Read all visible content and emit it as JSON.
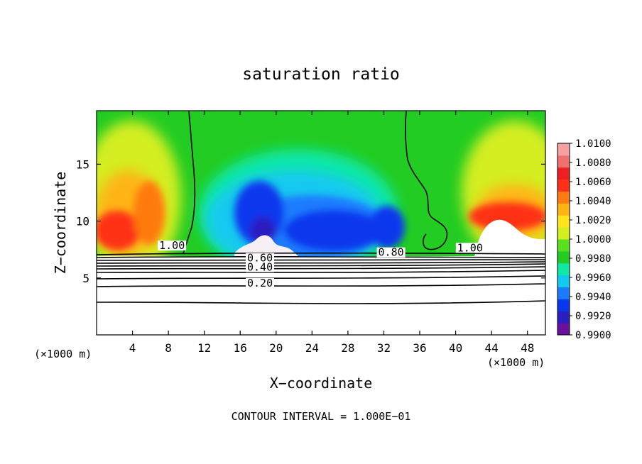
{
  "chart_data": {
    "type": "heatmap",
    "title": "saturation ratio",
    "xlabel": "X−coordinate",
    "ylabel": "Z−coordinate",
    "x_unit_left": "(×1000 m)",
    "x_unit_right": "(×1000 m)",
    "xlim": [
      0,
      50
    ],
    "ylim": [
      0,
      19.7
    ],
    "x_ticks": [
      4,
      8,
      12,
      16,
      20,
      24,
      28,
      32,
      36,
      40,
      44,
      48
    ],
    "y_ticks": [
      5,
      10,
      15
    ],
    "footer": "CONTOUR INTERVAL = 1.000E−01",
    "colorbar": {
      "range": [
        0.99,
        1.01
      ],
      "labels": [
        "0.9900",
        "0.9920",
        "0.9940",
        "0.9960",
        "0.9980",
        "1.0000",
        "1.0020",
        "1.0040",
        "1.0060",
        "1.0080",
        "1.0100"
      ],
      "colors": [
        "#6a0fa0",
        "#2b1fc0",
        "#0838ee",
        "#1a7bff",
        "#12c9f0",
        "#10e8a8",
        "#22cc22",
        "#58e020",
        "#d4ee22",
        "#ffe41e",
        "#ffb414",
        "#ff7a10",
        "#ff3018",
        "#ec2020",
        "#f07070",
        "#f6a0a0"
      ]
    },
    "contour_labels": [
      {
        "text": "1.00",
        "x": 8.4,
        "z": 7.6
      },
      {
        "text": "0.60",
        "x": 18.2,
        "z": 6.5
      },
      {
        "text": "0.40",
        "x": 18.2,
        "z": 5.7
      },
      {
        "text": "0.20",
        "x": 18.2,
        "z": 4.3
      },
      {
        "text": "0.80",
        "x": 32.8,
        "z": 7.0
      },
      {
        "text": "1.00",
        "x": 41.6,
        "z": 7.4
      }
    ],
    "contour_levels_below_cloud": [
      0.1,
      0.2,
      0.3,
      0.4,
      0.5,
      0.6,
      0.7,
      0.8,
      0.9,
      1.0
    ]
  }
}
